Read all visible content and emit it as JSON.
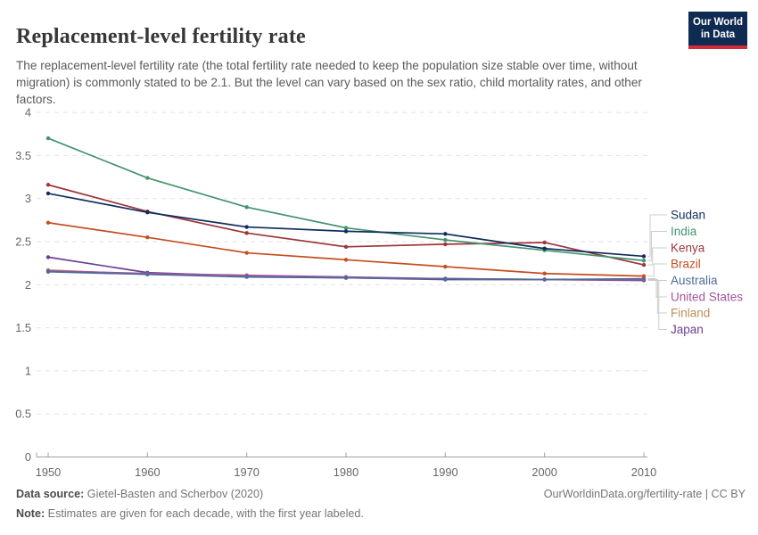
{
  "header": {
    "title": "Replacement-level fertility rate",
    "subtitle": "The replacement-level fertility rate (the total fertility rate needed to keep the population size stable over time, without migration) is commonly stated to be 2.1. But the level can vary based on the sex ratio, child mortality rates, and other factors.",
    "logo": {
      "line1": "Our World",
      "line2": "in Data",
      "bg_color": "#0f2b52",
      "stripe_color": "#d42b3a"
    }
  },
  "chart_data": {
    "type": "line",
    "title": "Replacement-level fertility rate",
    "xlabel": "",
    "ylabel": "",
    "x": [
      1950,
      1960,
      1970,
      1980,
      1990,
      2000,
      2010
    ],
    "xticks": [
      "1950",
      "1960",
      "1970",
      "1980",
      "1990",
      "2000",
      "2010"
    ],
    "yticks": [
      0,
      0.5,
      1,
      1.5,
      2,
      2.5,
      3,
      3.5,
      4
    ],
    "ylim": [
      0,
      4
    ],
    "grid": true,
    "grid_color": "#e2e2e2",
    "axis_color": "#a0a0a0",
    "legend_position": "right",
    "legend_connector_color": "#cccccc",
    "series": [
      {
        "name": "Sudan",
        "color": "#0f2e5c",
        "values": [
          3.06,
          2.84,
          2.67,
          2.62,
          2.59,
          2.42,
          2.33
        ]
      },
      {
        "name": "India",
        "color": "#44936f",
        "values": [
          3.7,
          3.24,
          2.9,
          2.66,
          2.52,
          2.4,
          2.28
        ]
      },
      {
        "name": "Kenya",
        "color": "#9d353c",
        "values": [
          3.16,
          2.85,
          2.6,
          2.44,
          2.47,
          2.49,
          2.23
        ]
      },
      {
        "name": "Brazil",
        "color": "#c44e1f",
        "values": [
          2.72,
          2.55,
          2.37,
          2.29,
          2.21,
          2.13,
          2.1
        ]
      },
      {
        "name": "Australia",
        "color": "#4c6a9c",
        "values": [
          2.15,
          2.12,
          2.09,
          2.08,
          2.07,
          2.06,
          2.07
        ]
      },
      {
        "name": "United States",
        "color": "#a2559c",
        "values": [
          2.16,
          2.13,
          2.11,
          2.09,
          2.07,
          2.06,
          2.06
        ]
      },
      {
        "name": "Finland",
        "color": "#bc8e5a",
        "values": [
          2.17,
          2.12,
          2.1,
          2.08,
          2.07,
          2.06,
          2.06
        ]
      },
      {
        "name": "Japan",
        "color": "#6d3e91",
        "values": [
          2.32,
          2.14,
          2.1,
          2.08,
          2.06,
          2.06,
          2.05
        ]
      }
    ]
  },
  "footer": {
    "source_label": "Data source:",
    "source_text": " Gietel-Basten and Scherbov (2020)",
    "citation": "OurWorldinData.org/fertility-rate | CC BY",
    "note_label": "Note:",
    "note_text": " Estimates are given for each decade, with the first year labeled."
  }
}
